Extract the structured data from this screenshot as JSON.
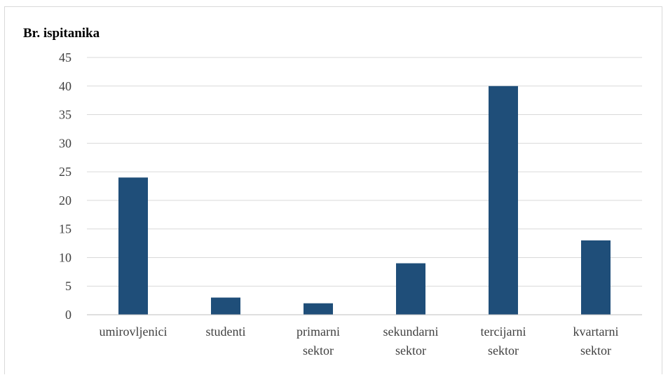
{
  "chart_data": {
    "type": "bar",
    "title": "",
    "xlabel": "",
    "ylabel": "Br. ispitanika",
    "categories": [
      [
        "umirovljenici"
      ],
      [
        "studenti"
      ],
      [
        "primarni",
        "sektor"
      ],
      [
        "sekundarni",
        "sektor"
      ],
      [
        "tercijarni",
        "sektor"
      ],
      [
        "kvartarni",
        "sektor"
      ]
    ],
    "values": [
      24,
      3,
      2,
      9,
      40,
      13
    ],
    "ylim": [
      0,
      45
    ],
    "yticks": [
      "0",
      "5",
      "10",
      "15",
      "20",
      "25",
      "30",
      "35",
      "40",
      "45"
    ],
    "grid": true,
    "legend": "none",
    "bar_color": "#1f4e79",
    "grid_color": "#d9d9d9",
    "axis_color": "#bfbfbf"
  }
}
